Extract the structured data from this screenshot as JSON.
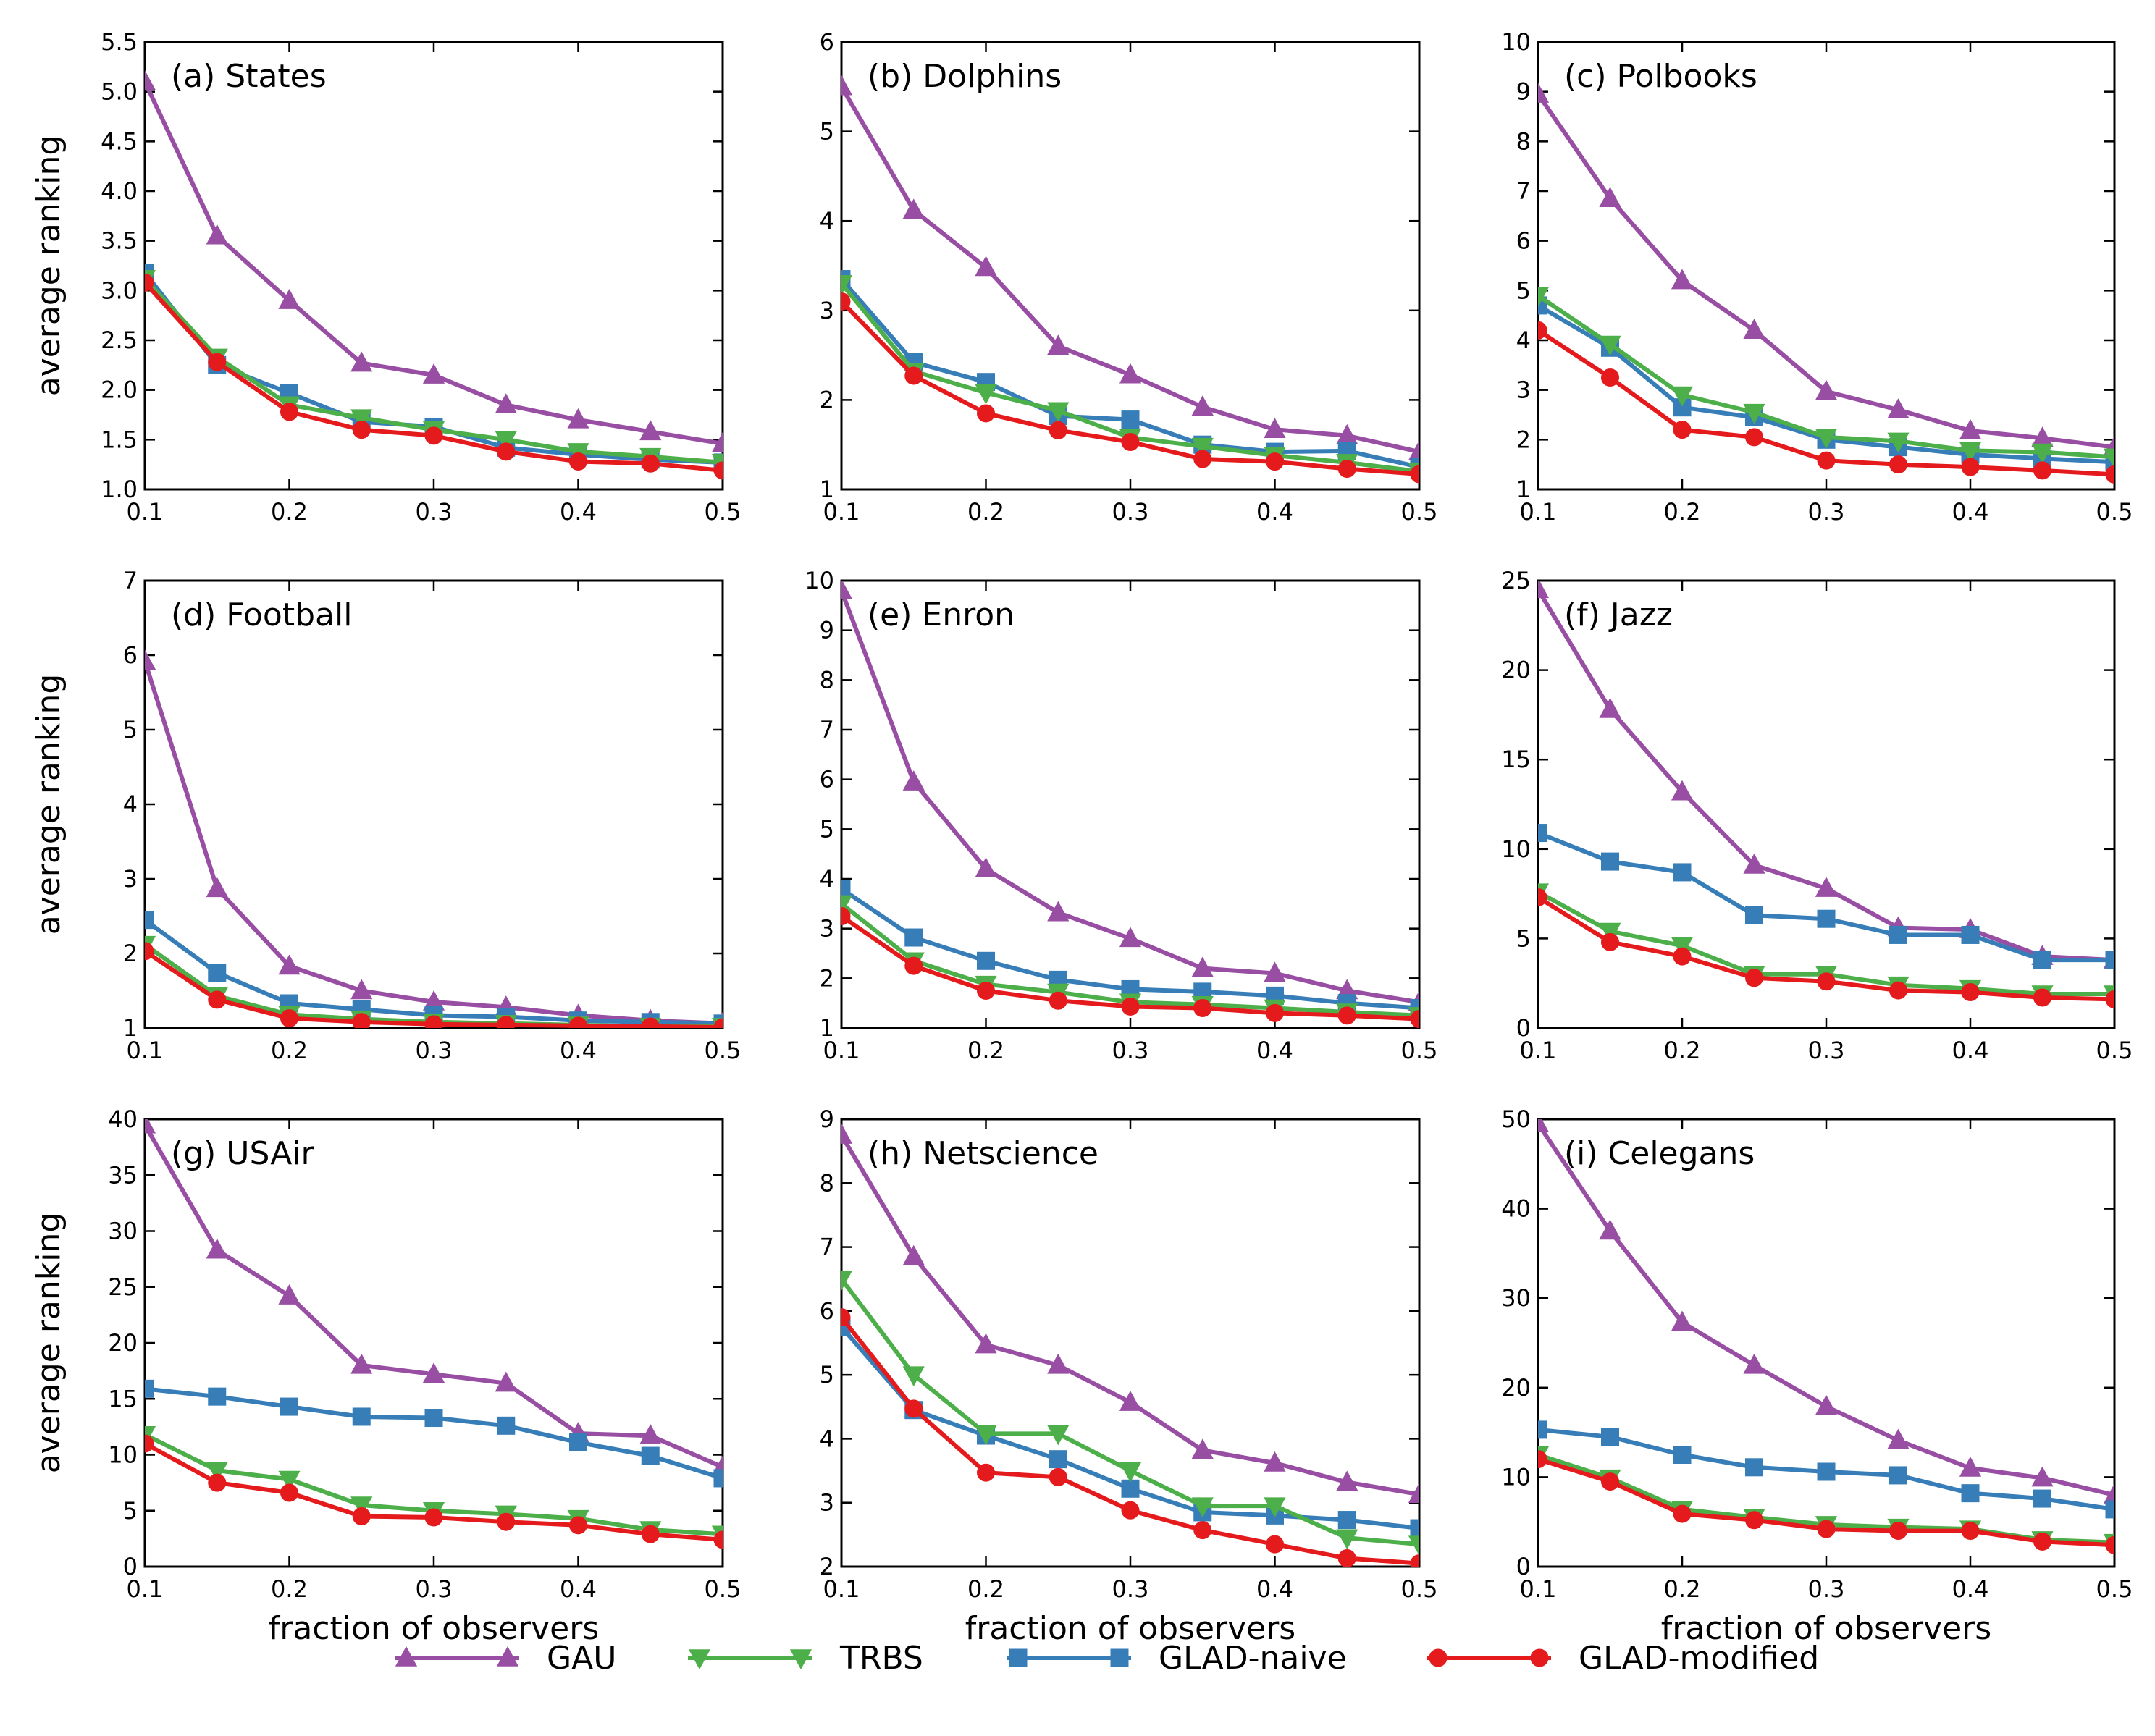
{
  "colors": {
    "GAU": "#984ea3",
    "TRBS": "#4daf4a",
    "GLAD-naive": "#377eb8",
    "GLAD-modified": "#e41a1c"
  },
  "legend": [
    {
      "name": "GAU",
      "marker": "triangle-up"
    },
    {
      "name": "TRBS",
      "marker": "triangle-down"
    },
    {
      "name": "GLAD-naive",
      "marker": "square"
    },
    {
      "name": "GLAD-modified",
      "marker": "circle"
    }
  ],
  "chart_data": [
    {
      "type": "line",
      "title": "(a) States",
      "xlabel": "",
      "ylabel": "average ranking",
      "x": [
        0.1,
        0.15,
        0.2,
        0.25,
        0.3,
        0.35,
        0.4,
        0.45,
        0.5
      ],
      "xlim": [
        0.1,
        0.5
      ],
      "xticks": [
        "0.1",
        "0.2",
        "0.3",
        "0.4",
        "0.5"
      ],
      "xtick_values": [
        0.1,
        0.2,
        0.3,
        0.4,
        0.5
      ],
      "ylim": [
        1.0,
        5.5
      ],
      "yticks": [
        "1.0",
        "1.5",
        "2.0",
        "2.5",
        "3.0",
        "3.5",
        "4.0",
        "4.5",
        "5.0",
        "5.5"
      ],
      "ytick_values": [
        1.0,
        1.5,
        2.0,
        2.5,
        3.0,
        3.5,
        4.0,
        4.5,
        5.0,
        5.5
      ],
      "series": [
        {
          "name": "GAU",
          "values": [
            5.1,
            3.55,
            2.9,
            2.27,
            2.15,
            1.85,
            1.7,
            1.58,
            1.46
          ]
        },
        {
          "name": "TRBS",
          "values": [
            3.12,
            2.33,
            1.85,
            1.72,
            1.6,
            1.5,
            1.38,
            1.33,
            1.27
          ]
        },
        {
          "name": "GLAD-naive",
          "values": [
            3.18,
            2.25,
            1.97,
            1.68,
            1.63,
            1.42,
            1.35,
            1.3,
            1.27
          ]
        },
        {
          "name": "GLAD-modified",
          "values": [
            3.08,
            2.28,
            1.78,
            1.6,
            1.54,
            1.38,
            1.28,
            1.26,
            1.19
          ]
        }
      ]
    },
    {
      "type": "line",
      "title": "(b) Dolphins",
      "xlabel": "",
      "ylabel": "",
      "x": [
        0.1,
        0.15,
        0.2,
        0.25,
        0.3,
        0.35,
        0.4,
        0.45,
        0.5
      ],
      "xlim": [
        0.1,
        0.5
      ],
      "xticks": [
        "0.1",
        "0.2",
        "0.3",
        "0.4",
        "0.5"
      ],
      "xtick_values": [
        0.1,
        0.2,
        0.3,
        0.4,
        0.5
      ],
      "ylim": [
        1,
        6
      ],
      "yticks": [
        "1",
        "2",
        "3",
        "4",
        "5",
        "6"
      ],
      "ytick_values": [
        1,
        2,
        3,
        4,
        5,
        6
      ],
      "series": [
        {
          "name": "GAU",
          "values": [
            5.5,
            4.12,
            3.48,
            2.6,
            2.28,
            1.92,
            1.67,
            1.6,
            1.42
          ]
        },
        {
          "name": "TRBS",
          "values": [
            3.3,
            2.32,
            2.08,
            1.88,
            1.58,
            1.48,
            1.38,
            1.3,
            1.2
          ]
        },
        {
          "name": "GLAD-naive",
          "values": [
            3.35,
            2.42,
            2.2,
            1.82,
            1.78,
            1.5,
            1.42,
            1.43,
            1.25
          ]
        },
        {
          "name": "GLAD-modified",
          "values": [
            3.1,
            2.27,
            1.85,
            1.66,
            1.53,
            1.34,
            1.31,
            1.23,
            1.17
          ]
        }
      ]
    },
    {
      "type": "line",
      "title": "(c) Polbooks",
      "xlabel": "",
      "ylabel": "",
      "x": [
        0.1,
        0.15,
        0.2,
        0.25,
        0.3,
        0.35,
        0.4,
        0.45,
        0.5
      ],
      "xlim": [
        0.1,
        0.5
      ],
      "xticks": [
        "0.1",
        "0.2",
        "0.3",
        "0.4",
        "0.5"
      ],
      "xtick_values": [
        0.1,
        0.2,
        0.3,
        0.4,
        0.5
      ],
      "ylim": [
        1,
        10
      ],
      "yticks": [
        "1",
        "2",
        "3",
        "4",
        "5",
        "6",
        "7",
        "8",
        "9",
        "10"
      ],
      "ytick_values": [
        1,
        2,
        3,
        4,
        5,
        6,
        7,
        8,
        9,
        10
      ],
      "series": [
        {
          "name": "GAU",
          "values": [
            8.95,
            6.85,
            5.2,
            4.2,
            2.97,
            2.6,
            2.18,
            2.03,
            1.85
          ]
        },
        {
          "name": "TRBS",
          "values": [
            4.9,
            3.92,
            2.9,
            2.55,
            2.05,
            1.97,
            1.78,
            1.75,
            1.65
          ]
        },
        {
          "name": "GLAD-naive",
          "values": [
            4.7,
            3.85,
            2.65,
            2.45,
            2.0,
            1.85,
            1.7,
            1.62,
            1.55
          ]
        },
        {
          "name": "GLAD-modified",
          "values": [
            4.2,
            3.25,
            2.2,
            2.05,
            1.58,
            1.5,
            1.45,
            1.38,
            1.3
          ]
        }
      ]
    },
    {
      "type": "line",
      "title": "(d) Football",
      "xlabel": "",
      "ylabel": "average ranking",
      "x": [
        0.1,
        0.15,
        0.2,
        0.25,
        0.3,
        0.35,
        0.4,
        0.45,
        0.5
      ],
      "xlim": [
        0.1,
        0.5
      ],
      "xticks": [
        "0.1",
        "0.2",
        "0.3",
        "0.4",
        "0.5"
      ],
      "xtick_values": [
        0.1,
        0.2,
        0.3,
        0.4,
        0.5
      ],
      "ylim": [
        1,
        7
      ],
      "yticks": [
        "1",
        "2",
        "3",
        "4",
        "5",
        "6",
        "7"
      ],
      "ytick_values": [
        1,
        2,
        3,
        4,
        5,
        6,
        7
      ],
      "series": [
        {
          "name": "GAU",
          "values": [
            5.92,
            2.87,
            1.83,
            1.5,
            1.35,
            1.28,
            1.17,
            1.1,
            1.06
          ]
        },
        {
          "name": "TRBS",
          "values": [
            2.12,
            1.43,
            1.18,
            1.12,
            1.08,
            1.06,
            1.04,
            1.02,
            1.02
          ]
        },
        {
          "name": "GLAD-naive",
          "values": [
            2.45,
            1.74,
            1.33,
            1.25,
            1.17,
            1.15,
            1.1,
            1.08,
            1.06
          ]
        },
        {
          "name": "GLAD-modified",
          "values": [
            2.03,
            1.38,
            1.13,
            1.08,
            1.05,
            1.04,
            1.03,
            1.02,
            1.01
          ]
        }
      ]
    },
    {
      "type": "line",
      "title": "(e) Enron",
      "xlabel": "",
      "ylabel": "",
      "x": [
        0.1,
        0.15,
        0.2,
        0.25,
        0.3,
        0.35,
        0.4,
        0.45,
        0.5
      ],
      "xlim": [
        0.1,
        0.5
      ],
      "xticks": [
        "0.1",
        "0.2",
        "0.3",
        "0.4",
        "0.5"
      ],
      "xtick_values": [
        0.1,
        0.2,
        0.3,
        0.4,
        0.5
      ],
      "ylim": [
        1,
        10
      ],
      "yticks": [
        "1",
        "2",
        "3",
        "4",
        "5",
        "6",
        "7",
        "8",
        "9",
        "10"
      ],
      "ytick_values": [
        1,
        2,
        3,
        4,
        5,
        6,
        7,
        8,
        9,
        10
      ],
      "series": [
        {
          "name": "GAU",
          "values": [
            9.8,
            5.95,
            4.2,
            3.32,
            2.8,
            2.2,
            2.1,
            1.75,
            1.52
          ]
        },
        {
          "name": "TRBS",
          "values": [
            3.5,
            2.35,
            1.88,
            1.72,
            1.52,
            1.47,
            1.4,
            1.32,
            1.25
          ]
        },
        {
          "name": "GLAD-naive",
          "values": [
            3.8,
            2.82,
            2.35,
            1.97,
            1.78,
            1.73,
            1.65,
            1.5,
            1.4
          ]
        },
        {
          "name": "GLAD-modified",
          "values": [
            3.25,
            2.25,
            1.75,
            1.55,
            1.43,
            1.4,
            1.3,
            1.25,
            1.18
          ]
        }
      ]
    },
    {
      "type": "line",
      "title": "(f) Jazz",
      "xlabel": "",
      "ylabel": "",
      "x": [
        0.1,
        0.15,
        0.2,
        0.25,
        0.3,
        0.35,
        0.4,
        0.45,
        0.5
      ],
      "xlim": [
        0.1,
        0.5
      ],
      "xticks": [
        "0.1",
        "0.2",
        "0.3",
        "0.4",
        "0.5"
      ],
      "xtick_values": [
        0.1,
        0.2,
        0.3,
        0.4,
        0.5
      ],
      "ylim": [
        0,
        25
      ],
      "yticks": [
        "0",
        "5",
        "10",
        "15",
        "20",
        "25"
      ],
      "ytick_values": [
        0,
        5,
        10,
        15,
        20,
        25
      ],
      "series": [
        {
          "name": "GAU",
          "values": [
            24.5,
            17.8,
            13.2,
            9.1,
            7.8,
            5.6,
            5.5,
            4.0,
            3.8
          ]
        },
        {
          "name": "TRBS",
          "values": [
            7.6,
            5.4,
            4.6,
            3.0,
            3.0,
            2.4,
            2.2,
            1.9,
            1.9
          ]
        },
        {
          "name": "GLAD-naive",
          "values": [
            10.9,
            9.3,
            8.7,
            6.3,
            6.1,
            5.2,
            5.2,
            3.8,
            3.8
          ]
        },
        {
          "name": "GLAD-modified",
          "values": [
            7.3,
            4.8,
            4.0,
            2.8,
            2.6,
            2.1,
            2.0,
            1.7,
            1.6
          ]
        }
      ]
    },
    {
      "type": "line",
      "title": "(g) USAir",
      "xlabel": "fraction of observers",
      "ylabel": "average ranking",
      "x": [
        0.1,
        0.15,
        0.2,
        0.25,
        0.3,
        0.35,
        0.4,
        0.45,
        0.5
      ],
      "xlim": [
        0.1,
        0.5
      ],
      "xticks": [
        "0.1",
        "0.2",
        "0.3",
        "0.4",
        "0.5"
      ],
      "xtick_values": [
        0.1,
        0.2,
        0.3,
        0.4,
        0.5
      ],
      "ylim": [
        0,
        40
      ],
      "yticks": [
        "0",
        "5",
        "10",
        "15",
        "20",
        "25",
        "30",
        "35",
        "40"
      ],
      "ytick_values": [
        0,
        5,
        10,
        15,
        20,
        25,
        30,
        35,
        40
      ],
      "series": [
        {
          "name": "GAU",
          "values": [
            39.5,
            28.3,
            24.2,
            18.0,
            17.2,
            16.4,
            11.9,
            11.7,
            8.9
          ]
        },
        {
          "name": "TRBS",
          "values": [
            11.8,
            8.6,
            7.8,
            5.5,
            5.0,
            4.7,
            4.3,
            3.3,
            2.9
          ]
        },
        {
          "name": "GLAD-naive",
          "values": [
            15.9,
            15.2,
            14.3,
            13.4,
            13.3,
            12.6,
            11.1,
            9.9,
            7.9
          ]
        },
        {
          "name": "GLAD-modified",
          "values": [
            11.0,
            7.5,
            6.6,
            4.5,
            4.4,
            4.0,
            3.7,
            2.9,
            2.4
          ]
        }
      ]
    },
    {
      "type": "line",
      "title": "(h) Netscience",
      "xlabel": "fraction of observers",
      "ylabel": "",
      "x": [
        0.1,
        0.15,
        0.2,
        0.25,
        0.3,
        0.35,
        0.4,
        0.45,
        0.5
      ],
      "xlim": [
        0.1,
        0.5
      ],
      "xticks": [
        "0.1",
        "0.2",
        "0.3",
        "0.4",
        "0.5"
      ],
      "xtick_values": [
        0.1,
        0.2,
        0.3,
        0.4,
        0.5
      ],
      "ylim": [
        2,
        9
      ],
      "yticks": [
        "2",
        "3",
        "4",
        "5",
        "6",
        "7",
        "8",
        "9"
      ],
      "ytick_values": [
        2,
        3,
        4,
        5,
        6,
        7,
        8,
        9
      ],
      "series": [
        {
          "name": "GAU",
          "values": [
            8.75,
            6.85,
            5.47,
            5.15,
            4.57,
            3.82,
            3.62,
            3.32,
            3.13
          ]
        },
        {
          "name": "TRBS",
          "values": [
            6.5,
            5.0,
            4.08,
            4.08,
            3.5,
            2.95,
            2.95,
            2.45,
            2.35
          ]
        },
        {
          "name": "GLAD-naive",
          "values": [
            5.75,
            4.45,
            4.05,
            3.68,
            3.22,
            2.85,
            2.8,
            2.73,
            2.6
          ]
        },
        {
          "name": "GLAD-modified",
          "values": [
            5.9,
            4.47,
            3.47,
            3.4,
            2.88,
            2.57,
            2.35,
            2.13,
            2.05
          ]
        }
      ]
    },
    {
      "type": "line",
      "title": "(i) Celegans",
      "xlabel": "fraction of observers",
      "ylabel": "",
      "x": [
        0.1,
        0.15,
        0.2,
        0.25,
        0.3,
        0.35,
        0.4,
        0.45,
        0.5
      ],
      "xlim": [
        0.1,
        0.5
      ],
      "xticks": [
        "0.1",
        "0.2",
        "0.3",
        "0.4",
        "0.5"
      ],
      "xtick_values": [
        0.1,
        0.2,
        0.3,
        0.4,
        0.5
      ],
      "ylim": [
        0,
        50
      ],
      "yticks": [
        "0",
        "10",
        "20",
        "30",
        "40",
        "50"
      ],
      "ytick_values": [
        0,
        10,
        20,
        30,
        40,
        50
      ],
      "series": [
        {
          "name": "GAU",
          "values": [
            49.5,
            37.5,
            27.3,
            22.5,
            17.9,
            14.1,
            11.0,
            9.9,
            8.0
          ]
        },
        {
          "name": "TRBS",
          "values": [
            12.5,
            9.9,
            6.4,
            5.5,
            4.7,
            4.4,
            4.2,
            3.0,
            2.7
          ]
        },
        {
          "name": "GLAD-naive",
          "values": [
            15.3,
            14.5,
            12.5,
            11.1,
            10.6,
            10.2,
            8.2,
            7.6,
            6.4
          ]
        },
        {
          "name": "GLAD-modified",
          "values": [
            12.0,
            9.5,
            5.9,
            5.2,
            4.2,
            4.0,
            4.0,
            2.8,
            2.4
          ]
        }
      ]
    }
  ]
}
